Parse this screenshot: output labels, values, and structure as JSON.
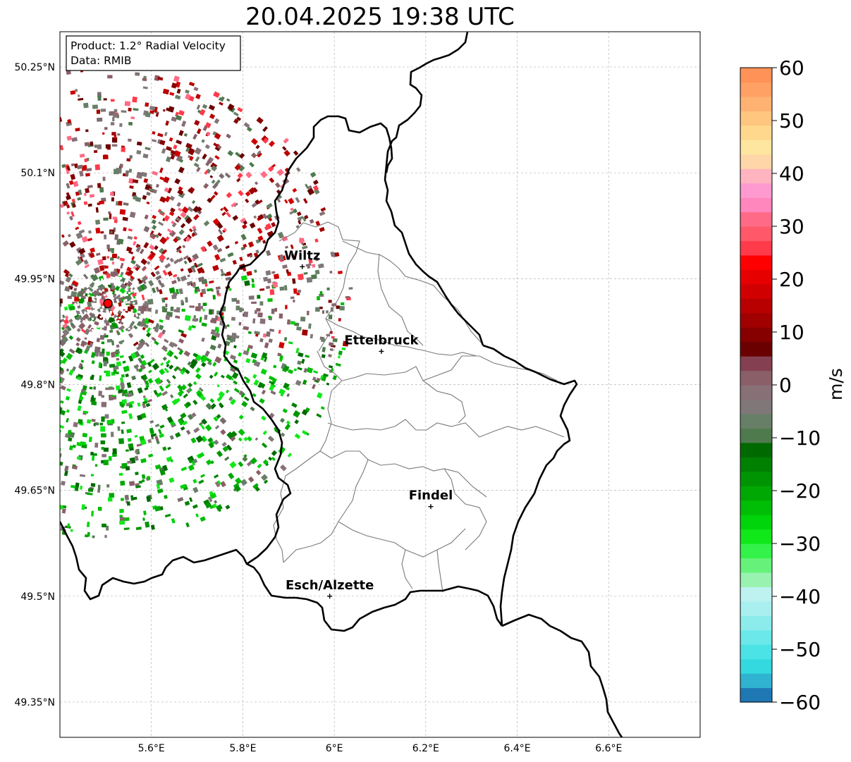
{
  "title": "20.04.2025 19:38 UTC",
  "info_box": {
    "product_line": "Product: 1.2° Radial Velocity",
    "data_line": "Data: RMIB"
  },
  "map": {
    "lon_range": [
      5.4,
      6.8
    ],
    "lat_range": [
      49.3,
      50.3
    ],
    "lon_ticks": [
      {
        "value": 5.6,
        "label": "5.6°E"
      },
      {
        "value": 5.8,
        "label": "5.8°E"
      },
      {
        "value": 6.0,
        "label": "6°E"
      },
      {
        "value": 6.2,
        "label": "6.2°E"
      },
      {
        "value": 6.4,
        "label": "6.4°E"
      },
      {
        "value": 6.6,
        "label": "6.6°E"
      }
    ],
    "lat_ticks": [
      {
        "value": 50.25,
        "label": "50.25°N"
      },
      {
        "value": 50.1,
        "label": "50.1°N"
      },
      {
        "value": 49.95,
        "label": "49.95°N"
      },
      {
        "value": 49.8,
        "label": "49.8°N"
      },
      {
        "value": 49.65,
        "label": "49.65°N"
      },
      {
        "value": 49.5,
        "label": "49.5°N"
      },
      {
        "value": 49.35,
        "label": "49.35°N"
      }
    ],
    "grid": true,
    "radar_site": {
      "lon": 5.505,
      "lat": 49.915
    },
    "cities": [
      {
        "name": "Wiltz",
        "lon": 5.93,
        "lat": 49.967
      },
      {
        "name": "Ettelbruck",
        "lon": 6.103,
        "lat": 49.847
      },
      {
        "name": "Findel",
        "lon": 6.211,
        "lat": 49.627
      },
      {
        "name": "Esch/Alzette",
        "lon": 5.99,
        "lat": 49.5
      }
    ]
  },
  "colorbar": {
    "label": "m/s",
    "range": [
      -60,
      60
    ],
    "ticks": [
      {
        "value": 60,
        "label": "60"
      },
      {
        "value": 50,
        "label": "50"
      },
      {
        "value": 40,
        "label": "40"
      },
      {
        "value": 30,
        "label": "30"
      },
      {
        "value": 20,
        "label": "20"
      },
      {
        "value": 10,
        "label": "10"
      },
      {
        "value": 0,
        "label": "0"
      },
      {
        "value": -10,
        "label": "−10"
      },
      {
        "value": -20,
        "label": "−20"
      },
      {
        "value": -30,
        "label": "−30"
      },
      {
        "value": -40,
        "label": "−40"
      },
      {
        "value": -50,
        "label": "−50"
      },
      {
        "value": -60,
        "label": "−60"
      }
    ],
    "colors": [
      "#1f78b4",
      "#2fb3d0",
      "#33d9de",
      "#4ce3e6",
      "#6ae8ea",
      "#8ceceb",
      "#aaeff0",
      "#bdf2f0",
      "#99f2b0",
      "#66f27a",
      "#33f24a",
      "#11e81a",
      "#00d40a",
      "#00bd05",
      "#00a803",
      "#009402",
      "#008001",
      "#006a00",
      "#4e7a4e",
      "#677f67",
      "#807878",
      "#887077",
      "#8a5f68",
      "#844050",
      "#6a0000",
      "#860000",
      "#a00000",
      "#b80000",
      "#d00000",
      "#e60000",
      "#ff0000",
      "#ff3a4a",
      "#ff5868",
      "#ff6a86",
      "#ff87bd",
      "#ff9ad0",
      "#ffb4c0",
      "#ffd6a8",
      "#ffe6a0",
      "#ffd88e",
      "#ffc680",
      "#ffb272",
      "#ffa064",
      "#ff9256"
    ]
  }
}
